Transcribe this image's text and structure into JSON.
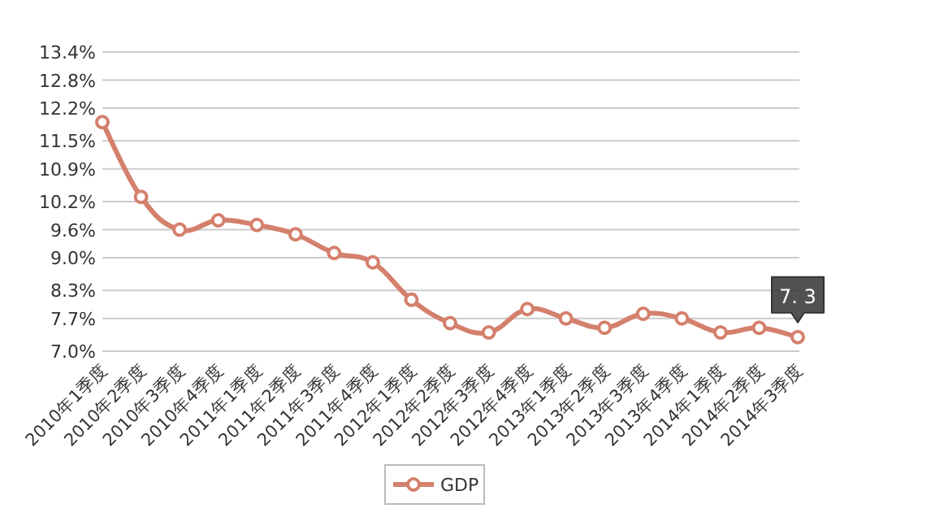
{
  "chart_data": {
    "type": "line",
    "categories": [
      "2010年1季度",
      "2010年2季度",
      "2010年3季度",
      "2010年4季度",
      "2011年1季度",
      "2011年2季度",
      "2011年3季度",
      "2011年4季度",
      "2012年1季度",
      "2012年2季度",
      "2012年3季度",
      "2012年4季度",
      "2013年1季度",
      "2013年2季度",
      "2013年3季度",
      "2013年4季度",
      "2014年1季度",
      "2014年2季度",
      "2014年3季度"
    ],
    "series": [
      {
        "name": "GDP",
        "color": "#d4806c",
        "values": [
          11.9,
          10.3,
          9.6,
          9.8,
          9.7,
          9.5,
          9.1,
          8.9,
          8.1,
          7.6,
          7.4,
          7.9,
          7.7,
          7.5,
          7.8,
          7.7,
          7.4,
          7.5,
          7.3
        ]
      }
    ],
    "ylim": [
      7.0,
      13.4
    ],
    "yticks": [
      {
        "value": 7.0,
        "label": "7.0%"
      },
      {
        "value": 7.7,
        "label": "7.7%"
      },
      {
        "value": 8.3,
        "label": "8.3%"
      },
      {
        "value": 9.0,
        "label": "9.0%"
      },
      {
        "value": 9.6,
        "label": "9.6%"
      },
      {
        "value": 10.2,
        "label": "10.2%"
      },
      {
        "value": 10.9,
        "label": "10.9%"
      },
      {
        "value": 11.5,
        "label": "11.5%"
      },
      {
        "value": 12.2,
        "label": "12.2%"
      },
      {
        "value": 12.8,
        "label": "12.8%"
      },
      {
        "value": 13.4,
        "label": "13.4%"
      }
    ],
    "grid": "y",
    "legend": "bottom",
    "marker": "circle",
    "annotations": [
      {
        "text": "7. 3",
        "x": "2014年3季度",
        "y": 7.3
      }
    ]
  }
}
